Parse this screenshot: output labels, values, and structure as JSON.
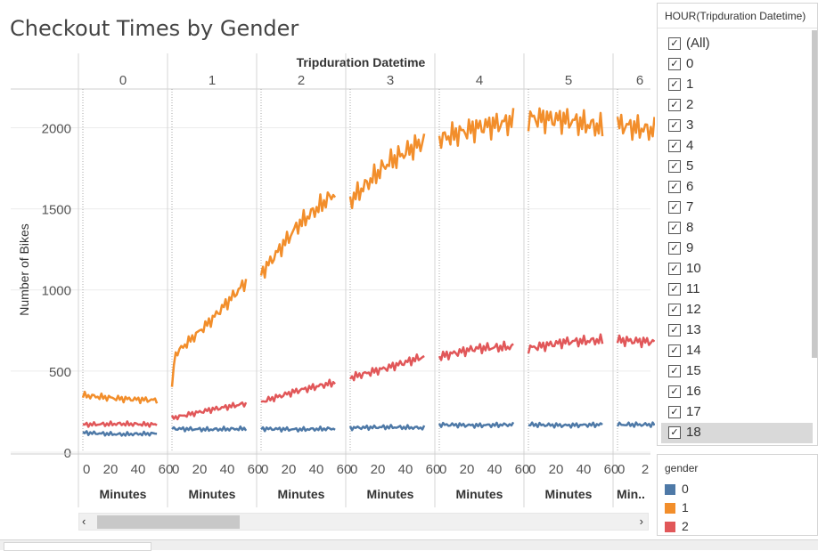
{
  "title": "Checkout Times by Gender",
  "filter": {
    "header": "HOUR(Tripduration Datetime)",
    "items": [
      {
        "label": "(All)",
        "checked": true
      },
      {
        "label": "0",
        "checked": true
      },
      {
        "label": "1",
        "checked": true
      },
      {
        "label": "2",
        "checked": true
      },
      {
        "label": "3",
        "checked": true
      },
      {
        "label": "4",
        "checked": true
      },
      {
        "label": "5",
        "checked": true
      },
      {
        "label": "6",
        "checked": true
      },
      {
        "label": "7",
        "checked": true
      },
      {
        "label": "8",
        "checked": true
      },
      {
        "label": "9",
        "checked": true
      },
      {
        "label": "10",
        "checked": true
      },
      {
        "label": "11",
        "checked": true
      },
      {
        "label": "12",
        "checked": true
      },
      {
        "label": "13",
        "checked": true
      },
      {
        "label": "14",
        "checked": true
      },
      {
        "label": "15",
        "checked": true
      },
      {
        "label": "16",
        "checked": true
      },
      {
        "label": "17",
        "checked": true
      },
      {
        "label": "18",
        "checked": true
      }
    ],
    "highlighted": "18"
  },
  "legend": {
    "title": "gender",
    "items": [
      {
        "label": "0",
        "color": "#4e79a7"
      },
      {
        "label": "1",
        "color": "#f28e2b"
      },
      {
        "label": "2",
        "color": "#e15759"
      }
    ]
  },
  "scroll": {
    "left_icon": "chevron-left-icon",
    "right_icon": "chevron-right-icon",
    "left_glyph": "‹",
    "right_glyph": "›"
  },
  "chart_data": {
    "type": "line",
    "title": "Checkout Times by Gender",
    "column_header": "Tripduration Datetime",
    "ylabel": "Number of Bikes",
    "xlabel": "Minutes",
    "ylim": [
      0,
      2200
    ],
    "yticks": [
      0,
      500,
      1000,
      1500,
      2000
    ],
    "xticks": [
      0,
      20,
      40,
      60
    ],
    "grid": true,
    "panels": [
      {
        "hour": "0",
        "xlabel": "Minutes",
        "xtick_labels": [
          "0",
          "20",
          "40",
          "60"
        ],
        "series": [
          {
            "name": "0",
            "color": "#4e79a7",
            "x": [
              0,
              30,
              60
            ],
            "y": [
              120,
              110,
              115
            ]
          },
          {
            "name": "1",
            "color": "#f28e2b",
            "x": [
              0,
              30,
              60
            ],
            "y": [
              350,
              330,
              320
            ]
          },
          {
            "name": "2",
            "color": "#e15759",
            "x": [
              0,
              30,
              60
            ],
            "y": [
              170,
              175,
              170
            ]
          }
        ]
      },
      {
        "hour": "1",
        "xlabel": "Minutes",
        "xtick_labels": [
          "0",
          "20",
          "40",
          "60"
        ],
        "series": [
          {
            "name": "0",
            "color": "#4e79a7",
            "x": [
              0,
              30,
              60
            ],
            "y": [
              145,
              140,
              145
            ]
          },
          {
            "name": "1",
            "color": "#f28e2b",
            "x": [
              0,
              2,
              30,
              60
            ],
            "y": [
              380,
              600,
              800,
              1050
            ]
          },
          {
            "name": "2",
            "color": "#e15759",
            "x": [
              0,
              30,
              60
            ],
            "y": [
              210,
              260,
              300
            ]
          }
        ]
      },
      {
        "hour": "2",
        "xlabel": "Minutes",
        "xtick_labels": [
          "0",
          "20",
          "40",
          "60"
        ],
        "series": [
          {
            "name": "0",
            "color": "#4e79a7",
            "x": [
              0,
              30,
              60
            ],
            "y": [
              145,
              140,
              145
            ]
          },
          {
            "name": "1",
            "color": "#f28e2b",
            "x": [
              0,
              30,
              60
            ],
            "y": [
              1100,
              1400,
              1600
            ]
          },
          {
            "name": "2",
            "color": "#e15759",
            "x": [
              0,
              30,
              60
            ],
            "y": [
              310,
              380,
              430
            ]
          }
        ]
      },
      {
        "hour": "3",
        "xlabel": "Minutes",
        "xtick_labels": [
          "0",
          "20",
          "40",
          "60"
        ],
        "series": [
          {
            "name": "0",
            "color": "#4e79a7",
            "x": [
              0,
              30,
              60
            ],
            "y": [
              150,
              155,
              150
            ]
          },
          {
            "name": "1",
            "color": "#f28e2b",
            "x": [
              0,
              30,
              60
            ],
            "y": [
              1550,
              1780,
              1920
            ]
          },
          {
            "name": "2",
            "color": "#e15759",
            "x": [
              0,
              30,
              60
            ],
            "y": [
              460,
              520,
              590
            ]
          }
        ]
      },
      {
        "hour": "4",
        "xlabel": "Minutes",
        "xtick_labels": [
          "0",
          "20",
          "40",
          "60"
        ],
        "series": [
          {
            "name": "0",
            "color": "#4e79a7",
            "x": [
              0,
              30,
              60
            ],
            "y": [
              170,
              165,
              170
            ]
          },
          {
            "name": "1",
            "color": "#f28e2b",
            "x": [
              0,
              30,
              60
            ],
            "y": [
              1930,
              2000,
              2040
            ]
          },
          {
            "name": "2",
            "color": "#e15759",
            "x": [
              0,
              30,
              60
            ],
            "y": [
              590,
              640,
              650
            ]
          }
        ]
      },
      {
        "hour": "5",
        "xlabel": "Minutes",
        "xtick_labels": [
          "0",
          "20",
          "40",
          "60"
        ],
        "series": [
          {
            "name": "0",
            "color": "#4e79a7",
            "x": [
              0,
              30,
              60
            ],
            "y": [
              170,
              165,
              170
            ]
          },
          {
            "name": "1",
            "color": "#f28e2b",
            "x": [
              0,
              30,
              60
            ],
            "y": [
              2060,
              2050,
              2000
            ]
          },
          {
            "name": "2",
            "color": "#e15759",
            "x": [
              0,
              30,
              60
            ],
            "y": [
              640,
              680,
              690
            ]
          }
        ]
      },
      {
        "hour": "6",
        "xlabel": "Min..",
        "xtick_labels": [
          "0",
          "2"
        ],
        "series": [
          {
            "name": "0",
            "color": "#4e79a7",
            "x": [
              0,
              30
            ],
            "y": [
              170,
              170
            ]
          },
          {
            "name": "1",
            "color": "#f28e2b",
            "x": [
              0,
              30
            ],
            "y": [
              2020,
              1980
            ]
          },
          {
            "name": "2",
            "color": "#e15759",
            "x": [
              0,
              30
            ],
            "y": [
              690,
              680
            ]
          }
        ]
      }
    ]
  }
}
